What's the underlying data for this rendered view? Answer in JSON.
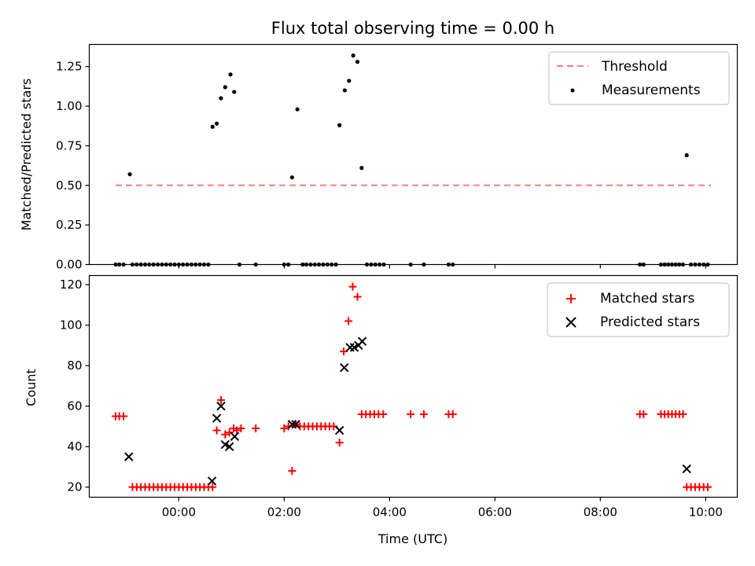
{
  "chart_data": [
    {
      "type": "scatter",
      "title": "Flux total observing time = 0.00 h",
      "ylabel": "Matched/Predicted stars",
      "ylim": [
        0,
        1.39
      ],
      "yticks": [
        0.0,
        0.25,
        0.5,
        0.75,
        1.0,
        1.25
      ],
      "ytick_labels": [
        "0.00",
        "0.25",
        "0.50",
        "0.75",
        "1.00",
        "1.25"
      ],
      "legend_position": "top-right",
      "threshold": {
        "name": "Threshold",
        "value": 0.5,
        "x_range": [
          -1.2,
          10.1
        ],
        "color": "#ff7f7f",
        "style": "dashed"
      },
      "series": [
        {
          "name": "Measurements",
          "color": "#000000",
          "marker": "dot",
          "points": [
            [
              -1.2,
              0
            ],
            [
              -1.13,
              0
            ],
            [
              -1.05,
              0
            ],
            [
              -0.93,
              0.57
            ],
            [
              -0.88,
              0
            ],
            [
              -0.8,
              0
            ],
            [
              -0.72,
              0
            ],
            [
              -0.64,
              0
            ],
            [
              -0.56,
              0
            ],
            [
              -0.48,
              0
            ],
            [
              -0.4,
              0
            ],
            [
              -0.32,
              0
            ],
            [
              -0.24,
              0
            ],
            [
              -0.16,
              0
            ],
            [
              -0.08,
              0
            ],
            [
              0.0,
              0
            ],
            [
              0.08,
              0
            ],
            [
              0.16,
              0
            ],
            [
              0.24,
              0
            ],
            [
              0.32,
              0
            ],
            [
              0.4,
              0
            ],
            [
              0.48,
              0
            ],
            [
              0.56,
              0
            ],
            [
              0.64,
              0.87
            ],
            [
              0.72,
              0.89
            ],
            [
              0.8,
              1.05
            ],
            [
              0.88,
              1.12
            ],
            [
              0.98,
              1.2
            ],
            [
              1.05,
              1.09
            ],
            [
              1.15,
              0
            ],
            [
              1.46,
              0
            ],
            [
              2.0,
              0
            ],
            [
              2.08,
              0
            ],
            [
              2.15,
              0.55
            ],
            [
              2.25,
              0.98
            ],
            [
              2.35,
              0
            ],
            [
              2.42,
              0
            ],
            [
              2.5,
              0
            ],
            [
              2.58,
              0
            ],
            [
              2.66,
              0
            ],
            [
              2.74,
              0
            ],
            [
              2.82,
              0
            ],
            [
              2.9,
              0
            ],
            [
              2.98,
              0
            ],
            [
              3.05,
              0.88
            ],
            [
              3.15,
              1.1
            ],
            [
              3.23,
              1.16
            ],
            [
              3.31,
              1.32
            ],
            [
              3.39,
              1.28
            ],
            [
              3.47,
              0.61
            ],
            [
              3.57,
              0
            ],
            [
              3.65,
              0
            ],
            [
              3.73,
              0
            ],
            [
              3.81,
              0
            ],
            [
              3.89,
              0
            ],
            [
              4.4,
              0
            ],
            [
              4.65,
              0
            ],
            [
              5.12,
              0
            ],
            [
              5.2,
              0
            ],
            [
              8.75,
              0
            ],
            [
              8.82,
              0
            ],
            [
              9.15,
              0
            ],
            [
              9.22,
              0
            ],
            [
              9.29,
              0
            ],
            [
              9.36,
              0
            ],
            [
              9.43,
              0
            ],
            [
              9.5,
              0
            ],
            [
              9.57,
              0
            ],
            [
              9.64,
              0.69
            ],
            [
              9.72,
              0
            ],
            [
              9.8,
              0
            ],
            [
              9.88,
              0
            ],
            [
              9.96,
              0
            ],
            [
              10.04,
              0
            ]
          ]
        }
      ]
    },
    {
      "type": "scatter",
      "xlabel": "Time (UTC)",
      "ylabel": "Count",
      "xlim": [
        -1.7,
        10.6
      ],
      "xticks": [
        0,
        2,
        4,
        6,
        8,
        10
      ],
      "xtick_labels": [
        "00:00",
        "02:00",
        "04:00",
        "06:00",
        "08:00",
        "10:00"
      ],
      "ylim": [
        15,
        124.5
      ],
      "yticks": [
        20,
        40,
        60,
        80,
        100,
        120
      ],
      "ytick_labels": [
        "20",
        "40",
        "60",
        "80",
        "100",
        "120"
      ],
      "legend_position": "top-right",
      "series": [
        {
          "name": "Matched stars",
          "color": "#ff0000",
          "marker": "plus",
          "points": [
            [
              -1.2,
              55
            ],
            [
              -1.13,
              55
            ],
            [
              -1.05,
              55
            ],
            [
              -0.88,
              20
            ],
            [
              -0.8,
              20
            ],
            [
              -0.72,
              20
            ],
            [
              -0.64,
              20
            ],
            [
              -0.56,
              20
            ],
            [
              -0.48,
              20
            ],
            [
              -0.4,
              20
            ],
            [
              -0.32,
              20
            ],
            [
              -0.24,
              20
            ],
            [
              -0.16,
              20
            ],
            [
              -0.08,
              20
            ],
            [
              0.0,
              20
            ],
            [
              0.08,
              20
            ],
            [
              0.16,
              20
            ],
            [
              0.24,
              20
            ],
            [
              0.32,
              20
            ],
            [
              0.4,
              20
            ],
            [
              0.48,
              20
            ],
            [
              0.56,
              20
            ],
            [
              0.64,
              20
            ],
            [
              0.72,
              48
            ],
            [
              0.8,
              63
            ],
            [
              0.88,
              46
            ],
            [
              0.96,
              47
            ],
            [
              1.04,
              49
            ],
            [
              1.1,
              48
            ],
            [
              1.18,
              49
            ],
            [
              1.46,
              49
            ],
            [
              2.0,
              49
            ],
            [
              2.08,
              50
            ],
            [
              2.15,
              28
            ],
            [
              2.22,
              51
            ],
            [
              2.3,
              50
            ],
            [
              2.38,
              50
            ],
            [
              2.46,
              50
            ],
            [
              2.54,
              50
            ],
            [
              2.62,
              50
            ],
            [
              2.7,
              50
            ],
            [
              2.78,
              50
            ],
            [
              2.86,
              50
            ],
            [
              2.94,
              50
            ],
            [
              3.05,
              42
            ],
            [
              3.13,
              87
            ],
            [
              3.22,
              102
            ],
            [
              3.3,
              119
            ],
            [
              3.39,
              114
            ],
            [
              3.47,
              56
            ],
            [
              3.55,
              56
            ],
            [
              3.63,
              56
            ],
            [
              3.71,
              56
            ],
            [
              3.79,
              56
            ],
            [
              3.88,
              56
            ],
            [
              4.4,
              56
            ],
            [
              4.65,
              56
            ],
            [
              5.12,
              56
            ],
            [
              5.2,
              56
            ],
            [
              8.75,
              56
            ],
            [
              8.82,
              56
            ],
            [
              9.15,
              56
            ],
            [
              9.22,
              56
            ],
            [
              9.29,
              56
            ],
            [
              9.36,
              56
            ],
            [
              9.43,
              56
            ],
            [
              9.5,
              56
            ],
            [
              9.57,
              56
            ],
            [
              9.64,
              20
            ],
            [
              9.72,
              20
            ],
            [
              9.8,
              20
            ],
            [
              9.88,
              20
            ],
            [
              9.96,
              20
            ],
            [
              10.04,
              20
            ]
          ]
        },
        {
          "name": "Predicted stars",
          "color": "#000000",
          "marker": "x",
          "points": [
            [
              -0.95,
              35
            ],
            [
              0.63,
              23
            ],
            [
              0.72,
              54
            ],
            [
              0.8,
              60
            ],
            [
              0.88,
              41
            ],
            [
              0.96,
              40
            ],
            [
              1.06,
              45
            ],
            [
              2.15,
              51
            ],
            [
              2.22,
              51
            ],
            [
              3.05,
              48
            ],
            [
              3.14,
              79
            ],
            [
              3.25,
              89
            ],
            [
              3.33,
              89
            ],
            [
              3.41,
              90
            ],
            [
              3.48,
              92
            ],
            [
              9.64,
              29
            ]
          ]
        }
      ]
    }
  ]
}
